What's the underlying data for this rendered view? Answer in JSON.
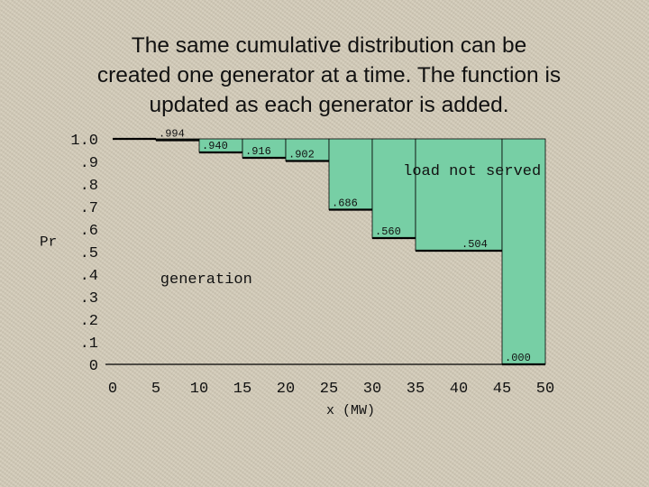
{
  "title_lines": [
    "The same cumulative distribution can be",
    "created one generator at a time.  The function is",
    "updated as each generator is added."
  ],
  "colors": {
    "background": "#d3cbb8",
    "fill": "#77cfa5",
    "line": "#000000"
  },
  "chart_data": {
    "type": "area",
    "x": [
      0,
      5,
      10,
      15,
      20,
      25,
      30,
      35,
      40,
      45,
      50
    ],
    "steps": [
      {
        "x0": 0,
        "x1": 5,
        "y": 1.0
      },
      {
        "x0": 5,
        "x1": 10,
        "y": 0.994
      },
      {
        "x0": 10,
        "x1": 15,
        "y": 0.94
      },
      {
        "x0": 15,
        "x1": 20,
        "y": 0.916
      },
      {
        "x0": 20,
        "x1": 25,
        "y": 0.902
      },
      {
        "x0": 25,
        "x1": 30,
        "y": 0.686
      },
      {
        "x0": 30,
        "x1": 35,
        "y": 0.56
      },
      {
        "x0": 35,
        "x1": 45,
        "y": 0.504
      },
      {
        "x0": 45,
        "x1": 50,
        "y": 0.0
      }
    ],
    "step_labels": [
      {
        "text": ".994",
        "x": 5,
        "y": 0.994
      },
      {
        "text": ".940",
        "x": 10,
        "y": 0.94
      },
      {
        "text": ".916",
        "x": 15,
        "y": 0.916
      },
      {
        "text": ".902",
        "x": 20,
        "y": 0.902
      },
      {
        "text": ".686",
        "x": 25,
        "y": 0.686
      },
      {
        "text": ".560",
        "x": 30,
        "y": 0.56
      },
      {
        "text": ".504",
        "x": 40,
        "y": 0.504
      },
      {
        "text": ".000",
        "x": 45,
        "y": 0.0
      }
    ],
    "x_ticks": [
      "0",
      "5",
      "10",
      "15",
      "20",
      "25",
      "30",
      "35",
      "40",
      "45",
      "50"
    ],
    "y_ticks": [
      {
        "label": "0",
        "value": 0.0
      },
      {
        "label": ".1",
        "value": 0.1
      },
      {
        "label": ".2",
        "value": 0.2
      },
      {
        "label": ".3",
        "value": 0.3
      },
      {
        "label": ".4",
        "value": 0.4
      },
      {
        "label": ".5",
        "value": 0.5
      },
      {
        "label": ".6",
        "value": 0.6
      },
      {
        "label": ".7",
        "value": 0.7
      },
      {
        "label": ".8",
        "value": 0.8
      },
      {
        "label": ".9",
        "value": 0.9
      },
      {
        "label": "1.0",
        "value": 1.0
      }
    ],
    "xlabel": "x (MW)",
    "ylabel": "Pr",
    "xlim": [
      0,
      50
    ],
    "ylim": [
      0,
      1.0
    ],
    "annotations": [
      {
        "text": "load not served",
        "x": 49.5,
        "y": 0.84,
        "anchor": "end"
      },
      {
        "text": "generation",
        "x": 5.5,
        "y": 0.36,
        "anchor": "start"
      }
    ]
  }
}
